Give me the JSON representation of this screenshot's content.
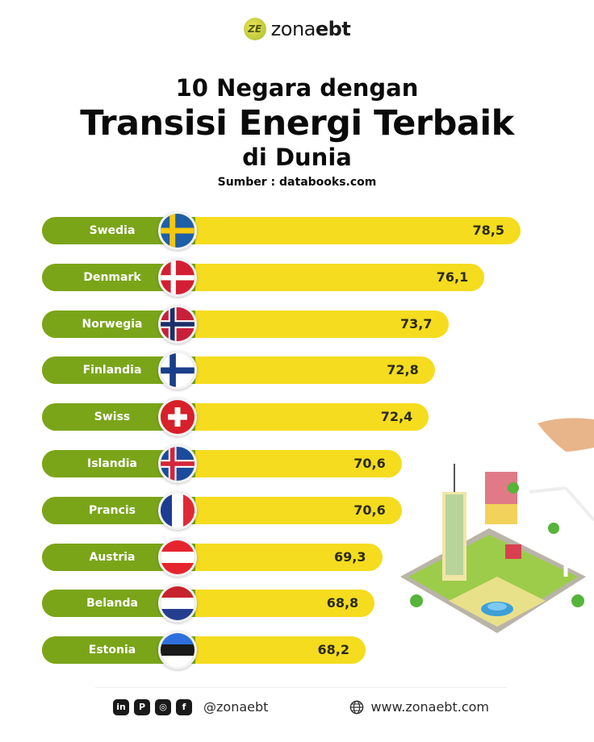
{
  "brand": {
    "logo_mark": "ZE",
    "name_light": "zona",
    "name_bold": "ebt"
  },
  "header": {
    "title_line1": "10 Negara dengan",
    "title_line2": "Transisi Energi Terbaik",
    "title_line3": "di Dunia",
    "source": "Sumber : databooks.com"
  },
  "colors": {
    "label_green": "#7aa519",
    "bar_yellow": "#f5dc1e",
    "text_dark": "#2a2a1a"
  },
  "rows": [
    {
      "country": "Swedia",
      "value": "78,5",
      "flag": "sweden-flag"
    },
    {
      "country": "Denmark",
      "value": "76,1",
      "flag": "denmark-flag"
    },
    {
      "country": "Norwegia",
      "value": "73,7",
      "flag": "norway-flag"
    },
    {
      "country": "Finlandia",
      "value": "72,8",
      "flag": "finland-flag"
    },
    {
      "country": "Swiss",
      "value": "72,4",
      "flag": "switzerland-flag"
    },
    {
      "country": "Islandia",
      "value": "70,6",
      "flag": "iceland-flag"
    },
    {
      "country": "Prancis",
      "value": "70,6",
      "flag": "france-flag"
    },
    {
      "country": "Austria",
      "value": "69,3",
      "flag": "austria-flag"
    },
    {
      "country": "Belanda",
      "value": "68,8",
      "flag": "netherlands-flag"
    },
    {
      "country": "Estonia",
      "value": "68,2",
      "flag": "estonia-flag"
    }
  ],
  "chart_data": {
    "type": "bar",
    "orientation": "horizontal",
    "title": "10 Negara dengan Transisi Energi Terbaik di Dunia",
    "subtitle": "Sumber : databooks.com",
    "categories": [
      "Swedia",
      "Denmark",
      "Norwegia",
      "Finlandia",
      "Swiss",
      "Islandia",
      "Prancis",
      "Austria",
      "Belanda",
      "Estonia"
    ],
    "values": [
      78.5,
      76.1,
      73.7,
      72.8,
      72.4,
      70.6,
      70.6,
      69.3,
      68.8,
      68.2
    ],
    "value_labels": [
      "78,5",
      "76,1",
      "73,7",
      "72,8",
      "72,4",
      "70,6",
      "70,6",
      "69,3",
      "68,8",
      "68,2"
    ],
    "xlabel": "",
    "ylabel": "",
    "grid": false,
    "legend": null
  },
  "footer": {
    "social_icons": [
      "linkedin-icon",
      "pinterest-icon",
      "instagram-icon",
      "facebook-icon"
    ],
    "social_glyphs": [
      "in",
      "P",
      "◎",
      "f"
    ],
    "handle": "@zonaebt",
    "website": "www.zonaebt.com"
  }
}
